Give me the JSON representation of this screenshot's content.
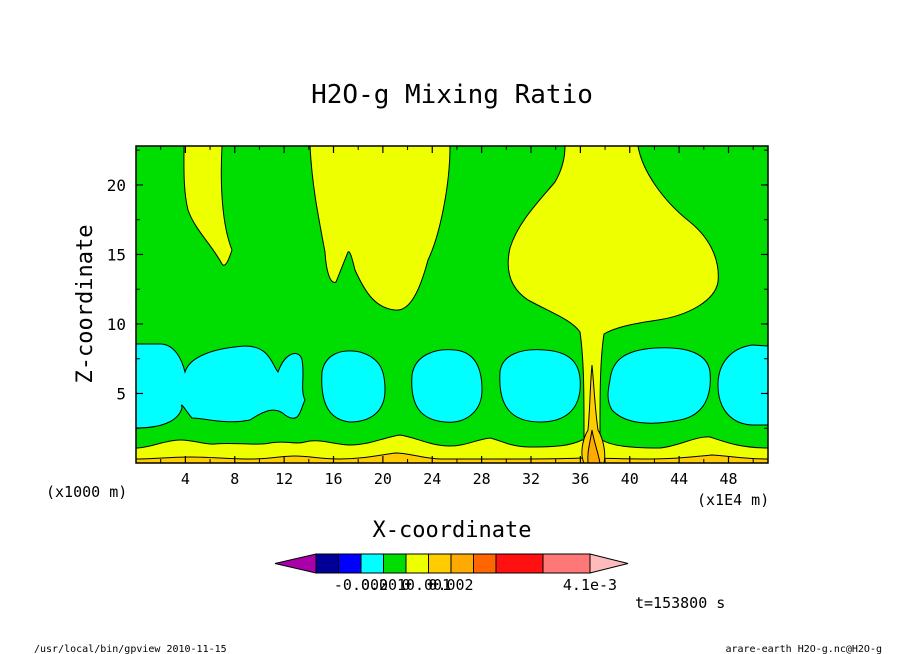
{
  "chart_data": {
    "type": "heatmap",
    "title": "H2O-g Mixing Ratio",
    "xlabel": "X-coordinate",
    "ylabel": "Z-coordinate",
    "x_unit_left": "(x1000 m)",
    "x_unit_right": "(x1E4 m)",
    "xlim": [
      0,
      51.2
    ],
    "ylim": [
      0,
      22.8
    ],
    "x_ticks": [
      4,
      8,
      12,
      16,
      20,
      24,
      28,
      32,
      36,
      40,
      44,
      48
    ],
    "y_ticks": [
      5,
      10,
      15,
      20
    ],
    "colorbar": {
      "colors": [
        "#aa00aa",
        "#000099",
        "#0000ff",
        "#00ffff",
        "#00dd00",
        "#eeff00",
        "#ffcc00",
        "#ffaa00",
        "#ff6600",
        "#ff1111",
        "#ff7777",
        "#ffbbbb"
      ],
      "labels": [
        {
          "text": "-0.002",
          "boundary": 2
        },
        {
          "text": "0.001",
          "boundary": 3
        },
        {
          "text": "0",
          "boundary": 4
        },
        {
          "text": "0.001",
          "boundary": 5
        },
        {
          "text": "0.002",
          "boundary": 6
        },
        {
          "text": "4.1e-3",
          "boundary": 10
        }
      ]
    },
    "time_label": "t=153800 s",
    "footer_left": "/usr/local/bin/gpview  2010-11-15",
    "footer_right": "arare-earth_H2O-g.nc@H2O-g"
  }
}
